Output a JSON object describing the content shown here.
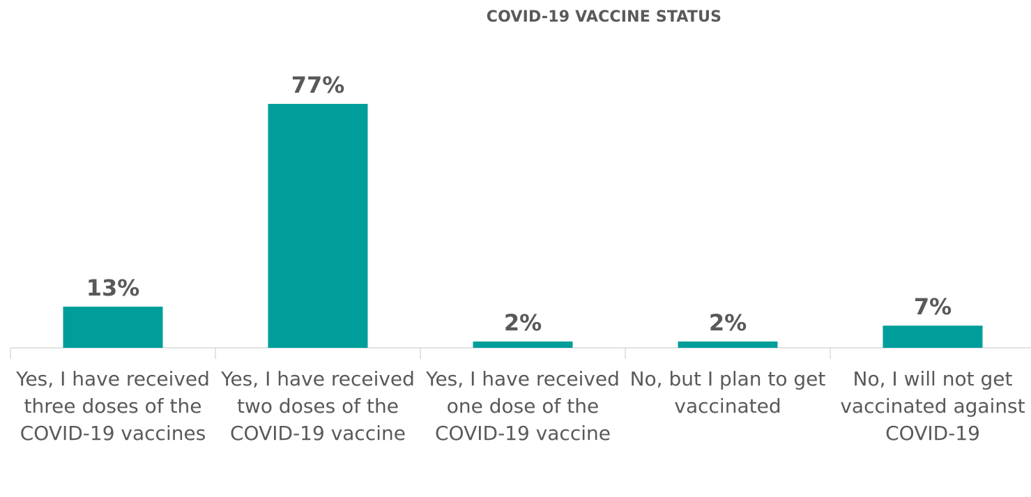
{
  "chart_data": {
    "type": "bar",
    "title": "COVID-19 VACCINE STATUS",
    "xlabel": "",
    "ylabel": "",
    "categories": [
      "Yes, I have received three doses of the COVID-19 vaccines",
      "Yes, I have received two doses of the COVID-19 vaccine",
      "Yes, I have received one dose of the COVID-19 vaccine",
      "No, but I plan to get vaccinated",
      "No, I will not get vaccinated against COVID-19"
    ],
    "values": [
      13,
      77,
      2,
      2,
      7
    ],
    "data_labels": [
      "13%",
      "77%",
      "2%",
      "2%",
      "7%"
    ],
    "unit": "%",
    "ylim": [
      0,
      80
    ],
    "grid": false,
    "legend": "none",
    "colors": {
      "bar": "#009e9a",
      "text": "#595959",
      "axis": "#d9d9d9"
    }
  }
}
